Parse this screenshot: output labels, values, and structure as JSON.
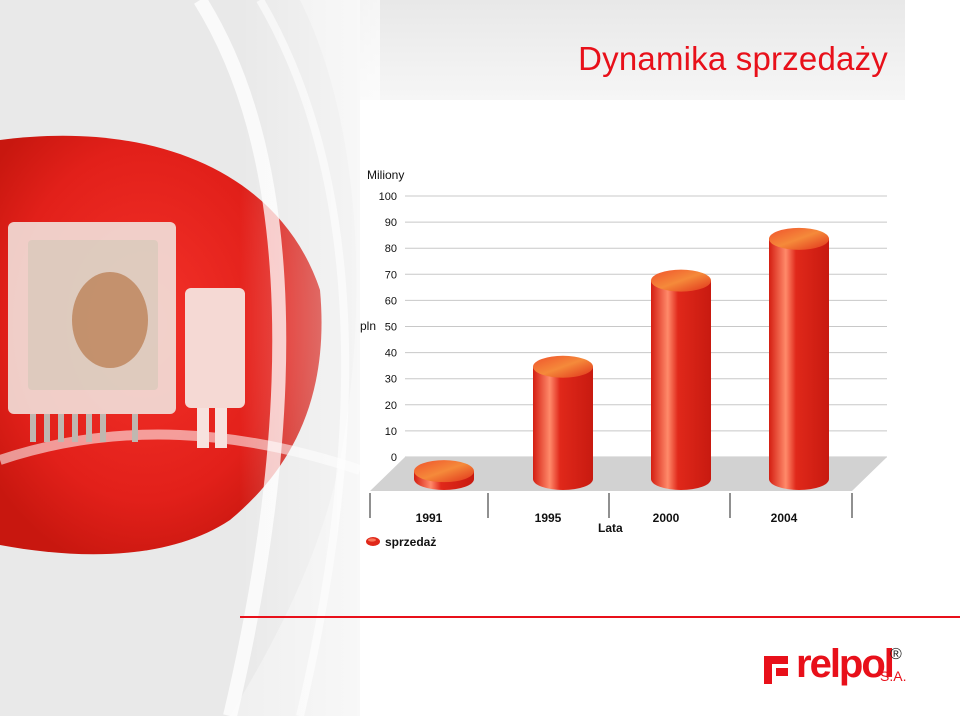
{
  "page": {
    "title": "Dynamika sprzedaży"
  },
  "chart_data": {
    "type": "bar",
    "categories": [
      "1991",
      "1995",
      "2000",
      "2004"
    ],
    "series": [
      {
        "name": "sprzedaż",
        "values": [
          3,
          43,
          76,
          92
        ]
      }
    ],
    "xlabel": "Lata",
    "ylabel": "pln",
    "y_unit": "Miliony",
    "ylim": [
      0,
      100
    ],
    "yticks": [
      0,
      10,
      20,
      30,
      40,
      50,
      60,
      70,
      80,
      90,
      100
    ],
    "grid": true,
    "legend": "bottom-left",
    "style": "3d-cylinder",
    "colors": {
      "bar": "#e0281a",
      "bar_highlight": "#ff8a6a",
      "floor": "#d2d2d2",
      "grid": "#c8c8c8"
    }
  },
  "logo": {
    "text": "relpol",
    "suffix": "S.A.",
    "mark": "®"
  },
  "colors": {
    "accent": "#e8101a"
  }
}
